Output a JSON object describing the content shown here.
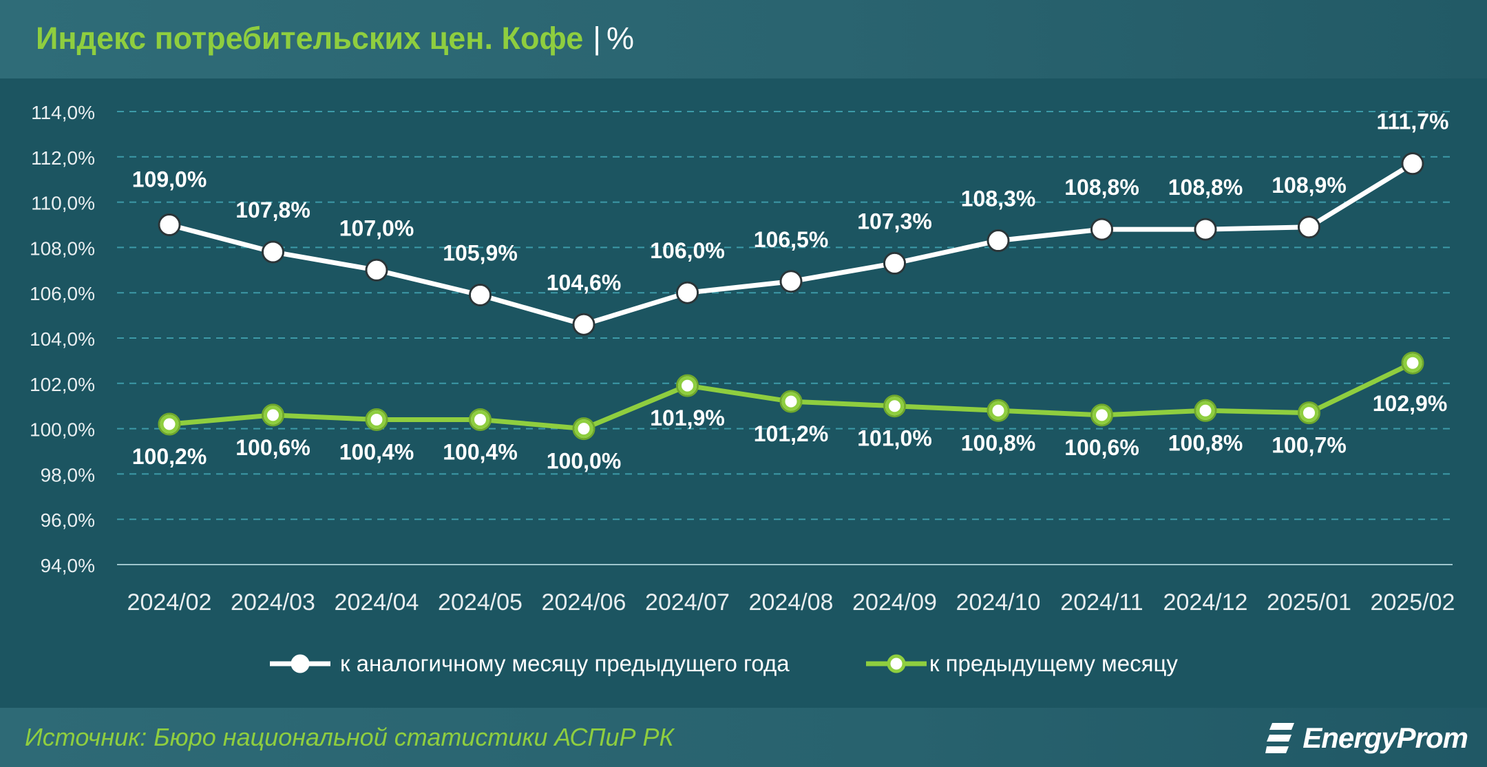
{
  "header": {
    "title": "Индекс потребительских цен. Кофе",
    "unit": "%"
  },
  "footer": {
    "source": "Источник: Бюро национальной статистики АСПиР РК",
    "logo_text": "EnergyProm"
  },
  "colors": {
    "yoy": "#ffffff",
    "mom": "#8fce3f",
    "grid": "#3d9aa8",
    "axis": "#e8eef0"
  },
  "chart_data": {
    "type": "line",
    "title": "Индекс потребительских цен. Кофе",
    "x": [
      "2024/02",
      "2024/03",
      "2024/04",
      "2024/05",
      "2024/06",
      "2024/07",
      "2024/08",
      "2024/09",
      "2024/10",
      "2024/11",
      "2024/12",
      "2025/01",
      "2025/02"
    ],
    "ylim": [
      94,
      114
    ],
    "yticks": [
      94,
      96,
      98,
      100,
      102,
      104,
      106,
      108,
      110,
      112,
      114
    ],
    "ytick_labels": [
      "94,0%",
      "96,0%",
      "98,0%",
      "100,0%",
      "102,0%",
      "104,0%",
      "106,0%",
      "108,0%",
      "110,0%",
      "112,0%",
      "114,0%"
    ],
    "grid": "horizontal dashed",
    "legend_position": "bottom-center",
    "series": [
      {
        "name": "к аналогичному месяцу предыдущего года",
        "values": [
          109.0,
          107.8,
          107.0,
          105.9,
          104.6,
          106.0,
          106.5,
          107.3,
          108.3,
          108.8,
          108.8,
          108.9,
          111.7
        ],
        "labels": [
          "109,0%",
          "107,8%",
          "107,0%",
          "105,9%",
          "104,6%",
          "106,0%",
          "106,5%",
          "107,3%",
          "108,3%",
          "108,8%",
          "108,8%",
          "108,9%",
          "111,7%"
        ]
      },
      {
        "name": "к предыдущему месяцу",
        "values": [
          100.2,
          100.6,
          100.4,
          100.4,
          100.0,
          101.9,
          101.2,
          101.0,
          100.8,
          100.6,
          100.8,
          100.7,
          102.9
        ],
        "labels": [
          "100,2%",
          "100,6%",
          "100,4%",
          "100,4%",
          "100,0%",
          "101,9%",
          "101,2%",
          "101,0%",
          "100,8%",
          "100,6%",
          "100,8%",
          "100,7%",
          "102,9%"
        ]
      }
    ]
  }
}
